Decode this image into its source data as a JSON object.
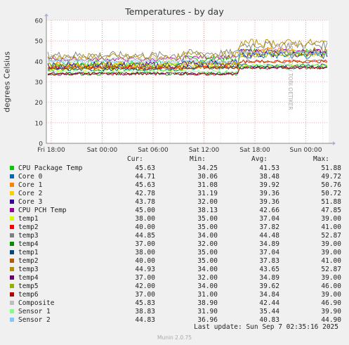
{
  "chart_data": {
    "type": "line",
    "title": "Temperatures - by day",
    "ylabel": "degrees Celsius",
    "ylim": [
      0,
      60
    ],
    "yticks": [
      "0",
      "10",
      "20",
      "30",
      "40",
      "50",
      "60"
    ],
    "xticks": [
      "Fri 18:00",
      "Sat 00:00",
      "Sat 06:00",
      "Sat 12:00",
      "Sat 18:00",
      "Sun 00:00"
    ],
    "grid": true,
    "series": [
      {
        "name": "CPU Package Temp",
        "color": "#00cc00",
        "cur": "45.63",
        "min": "34.25",
        "avg": "41.53",
        "max": "51.88",
        "p1": 39,
        "p2": 41,
        "p3": 45
      },
      {
        "name": "Core 0",
        "color": "#0066b3",
        "cur": "44.71",
        "min": "30.06",
        "avg": "38.48",
        "max": "49.72",
        "p1": 37,
        "p2": 38,
        "p3": 43
      },
      {
        "name": "Core 1",
        "color": "#ff8000",
        "cur": "45.63",
        "min": "31.08",
        "avg": "39.92",
        "max": "50.76",
        "p1": 38,
        "p2": 39,
        "p3": 45
      },
      {
        "name": "Core 2",
        "color": "#ffcc00",
        "cur": "42.78",
        "min": "31.19",
        "avg": "39.36",
        "max": "50.72",
        "p1": 38,
        "p2": 39,
        "p3": 44
      },
      {
        "name": "Core 3",
        "color": "#330099",
        "cur": "43.78",
        "min": "32.00",
        "avg": "39.36",
        "max": "51.88",
        "p1": 38,
        "p2": 39,
        "p3": 44
      },
      {
        "name": "CPU PCH Temp",
        "color": "#990099",
        "cur": "45.00",
        "min": "38.13",
        "avg": "42.66",
        "max": "47.85",
        "p1": 41,
        "p2": 42,
        "p3": 45
      },
      {
        "name": "temp1",
        "color": "#ccff00",
        "cur": "38.00",
        "min": "35.00",
        "avg": "37.04",
        "max": "39.00",
        "p1": 36,
        "p2": 37,
        "p3": 38
      },
      {
        "name": "temp2",
        "color": "#ff0000",
        "cur": "40.00",
        "min": "35.00",
        "avg": "37.82",
        "max": "41.00",
        "p1": 37,
        "p2": 37,
        "p3": 40
      },
      {
        "name": "temp3",
        "color": "#808080",
        "cur": "44.85",
        "min": "34.00",
        "avg": "44.48",
        "max": "52.87",
        "p1": 43,
        "p2": 44,
        "p3": 48
      },
      {
        "name": "temp4",
        "color": "#008f00",
        "cur": "37.00",
        "min": "32.00",
        "avg": "34.89",
        "max": "39.00",
        "p1": 34,
        "p2": 34,
        "p3": 37
      },
      {
        "name": "temp1",
        "color": "#00487d",
        "cur": "38.00",
        "min": "35.00",
        "avg": "37.04",
        "max": "39.00",
        "p1": 36,
        "p2": 37,
        "p3": 38
      },
      {
        "name": "temp2",
        "color": "#b35a00",
        "cur": "40.00",
        "min": "35.00",
        "avg": "37.83",
        "max": "41.00",
        "p1": 37,
        "p2": 37,
        "p3": 40
      },
      {
        "name": "temp3",
        "color": "#b38f00",
        "cur": "44.93",
        "min": "34.00",
        "avg": "43.65",
        "max": "52.87",
        "p1": 42,
        "p2": 43,
        "p3": 49
      },
      {
        "name": "temp4",
        "color": "#6b006b",
        "cur": "37.00",
        "min": "32.00",
        "avg": "34.89",
        "max": "39.00",
        "p1": 34,
        "p2": 34,
        "p3": 37
      },
      {
        "name": "temp5",
        "color": "#8fb300",
        "cur": "42.00",
        "min": "34.00",
        "avg": "39.62",
        "max": "46.00",
        "p1": 38,
        "p2": 39,
        "p3": 43
      },
      {
        "name": "temp6",
        "color": "#b30000",
        "cur": "37.00",
        "min": "31.00",
        "avg": "34.84",
        "max": "39.00",
        "p1": 34,
        "p2": 34,
        "p3": 37
      },
      {
        "name": "Composite",
        "color": "#bebebe",
        "cur": "45.83",
        "min": "38.90",
        "avg": "42.44",
        "max": "46.90",
        "p1": 41,
        "p2": 42,
        "p3": 45
      },
      {
        "name": "Sensor 1",
        "color": "#80ff80",
        "cur": "38.83",
        "min": "31.90",
        "avg": "35.44",
        "max": "39.90",
        "p1": 35,
        "p2": 35,
        "p3": 38
      },
      {
        "name": "Sensor 2",
        "color": "#80c9ff",
        "cur": "44.83",
        "min": "36.96",
        "avg": "40.83",
        "max": "44.90",
        "p1": 40,
        "p2": 40,
        "p3": 44
      }
    ]
  },
  "legend": {
    "cur": "Cur:",
    "min": "Min:",
    "avg": "Avg:",
    "max": "Max:"
  },
  "watermark": "RRDTOOL / TOBI OETIKER",
  "footer": "Last update: Sun Sep  7 02:35:16 2025",
  "munin": "Munin 2.0.75"
}
